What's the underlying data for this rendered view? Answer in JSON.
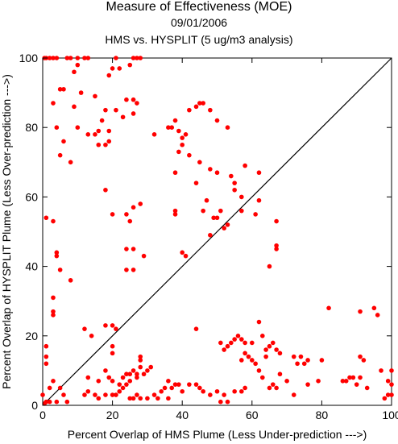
{
  "chart_data": {
    "type": "scatter",
    "title": "Measure of Effectiveness (MOE)",
    "subtitle_date": "09/01/2006",
    "subtitle_comparison": "HMS vs. HYSPLIT  (5 ug/m3 analysis)",
    "xlabel": "Percent Overlap of HMS Plume (Less Under-prediction --->)",
    "ylabel": "Percent Overlap of HYSPLIT Plume (Less Over-prediction --->)",
    "xlim": [
      0,
      100
    ],
    "ylim": [
      0,
      100
    ],
    "xticks": [
      0,
      20,
      40,
      60,
      80,
      100
    ],
    "yticks": [
      0,
      20,
      40,
      60,
      80,
      100
    ],
    "x_tick_labels": [
      "0",
      "20",
      "40",
      "60",
      "80",
      "100"
    ],
    "y_tick_labels": [
      "0",
      "20",
      "40",
      "60",
      "80",
      "100"
    ],
    "grid": false,
    "diagonal_reference_line": true,
    "marker_color": "#ff0000",
    "line_color": "#000000",
    "points": [
      [
        0.5,
        100
      ],
      [
        1,
        100
      ],
      [
        2,
        100
      ],
      [
        3,
        100
      ],
      [
        4,
        100
      ],
      [
        7,
        100
      ],
      [
        8,
        100
      ],
      [
        10,
        100
      ],
      [
        12,
        100
      ],
      [
        13,
        100
      ],
      [
        21,
        100
      ],
      [
        26,
        100
      ],
      [
        27,
        100
      ],
      [
        28,
        100
      ],
      [
        10,
        98
      ],
      [
        25,
        98
      ],
      [
        9,
        96
      ],
      [
        20,
        97
      ],
      [
        22,
        97
      ],
      [
        19,
        95
      ],
      [
        5,
        91
      ],
      [
        6,
        91
      ],
      [
        11,
        90
      ],
      [
        15,
        89
      ],
      [
        24,
        88
      ],
      [
        26,
        88
      ],
      [
        27,
        87
      ],
      [
        3,
        87
      ],
      [
        9,
        86
      ],
      [
        21,
        85
      ],
      [
        18,
        85
      ],
      [
        26,
        84
      ],
      [
        23,
        83
      ],
      [
        17,
        82
      ],
      [
        4,
        80
      ],
      [
        10,
        80
      ],
      [
        16,
        79
      ],
      [
        19,
        79
      ],
      [
        15,
        78
      ],
      [
        13,
        78
      ],
      [
        6,
        76
      ],
      [
        16,
        75
      ],
      [
        18,
        75
      ],
      [
        19,
        76
      ],
      [
        5,
        72
      ],
      [
        8,
        70
      ],
      [
        18,
        62
      ],
      [
        32,
        78
      ],
      [
        36,
        80
      ],
      [
        37,
        80
      ],
      [
        38,
        82
      ],
      [
        39,
        79
      ],
      [
        40,
        77
      ],
      [
        41,
        78
      ],
      [
        42,
        85
      ],
      [
        44,
        86
      ],
      [
        45,
        87
      ],
      [
        46,
        87
      ],
      [
        48,
        85
      ],
      [
        50,
        82
      ],
      [
        53,
        80
      ],
      [
        39,
        73
      ],
      [
        42,
        72
      ],
      [
        40,
        75
      ],
      [
        45,
        70
      ],
      [
        38,
        67
      ],
      [
        44,
        64
      ],
      [
        48,
        68
      ],
      [
        50,
        67
      ],
      [
        54,
        66
      ],
      [
        55,
        62
      ],
      [
        58,
        69
      ],
      [
        62,
        67
      ],
      [
        55,
        64
      ],
      [
        57,
        60
      ],
      [
        47,
        59
      ],
      [
        46,
        56
      ],
      [
        51,
        56
      ],
      [
        49,
        54
      ],
      [
        50,
        54
      ],
      [
        53,
        52
      ],
      [
        57,
        56
      ],
      [
        61,
        55
      ],
      [
        62,
        59
      ],
      [
        67,
        53
      ],
      [
        67,
        46
      ],
      [
        67,
        45
      ],
      [
        65,
        40
      ],
      [
        38,
        56
      ],
      [
        38,
        55
      ],
      [
        20,
        55
      ],
      [
        24,
        55
      ],
      [
        25,
        53
      ],
      [
        26,
        57
      ],
      [
        28,
        58
      ],
      [
        40,
        44
      ],
      [
        41,
        43
      ],
      [
        48,
        49
      ],
      [
        52,
        51
      ],
      [
        1,
        54
      ],
      [
        3,
        53
      ],
      [
        4,
        44
      ],
      [
        4,
        43
      ],
      [
        5,
        39
      ],
      [
        8,
        36
      ],
      [
        3,
        31
      ],
      [
        3,
        27
      ],
      [
        3,
        26
      ],
      [
        12,
        22
      ],
      [
        18,
        23
      ],
      [
        20,
        23
      ],
      [
        21,
        22
      ],
      [
        14,
        20
      ],
      [
        24,
        39
      ],
      [
        26,
        39
      ],
      [
        24,
        45
      ],
      [
        26,
        45
      ],
      [
        29,
        43
      ],
      [
        20,
        17
      ],
      [
        20,
        15
      ],
      [
        1,
        17
      ],
      [
        1,
        14
      ],
      [
        1,
        12
      ],
      [
        2,
        5
      ],
      [
        3,
        7
      ],
      [
        0,
        3
      ],
      [
        5,
        5
      ],
      [
        6,
        3
      ],
      [
        7,
        1
      ],
      [
        0.5,
        0.5
      ],
      [
        1,
        1
      ],
      [
        2,
        1
      ],
      [
        4,
        1
      ],
      [
        13,
        8
      ],
      [
        16,
        7
      ],
      [
        18,
        10
      ],
      [
        19,
        8
      ],
      [
        20,
        7
      ],
      [
        22,
        6
      ],
      [
        23,
        8
      ],
      [
        24,
        9
      ],
      [
        25,
        9
      ],
      [
        26,
        10
      ],
      [
        27,
        9
      ],
      [
        28,
        11
      ],
      [
        28,
        14
      ],
      [
        28,
        13
      ],
      [
        31,
        11
      ],
      [
        30,
        10
      ],
      [
        29,
        9
      ],
      [
        27,
        8
      ],
      [
        25,
        7
      ],
      [
        24,
        6
      ],
      [
        23,
        5
      ],
      [
        22,
        4
      ],
      [
        21,
        3
      ],
      [
        20,
        3
      ],
      [
        18,
        3
      ],
      [
        16,
        2
      ],
      [
        15,
        3
      ],
      [
        13,
        4
      ],
      [
        12,
        3
      ],
      [
        25,
        2
      ],
      [
        26,
        2
      ],
      [
        27,
        3
      ],
      [
        28,
        2
      ],
      [
        30,
        2
      ],
      [
        32,
        3
      ],
      [
        34,
        4
      ],
      [
        35,
        5
      ],
      [
        36,
        7
      ],
      [
        37,
        5
      ],
      [
        38,
        6
      ],
      [
        39,
        6
      ],
      [
        40,
        4
      ],
      [
        42,
        6
      ],
      [
        44,
        6
      ],
      [
        45,
        5
      ],
      [
        46,
        4
      ],
      [
        48,
        3
      ],
      [
        50,
        4
      ],
      [
        52,
        3
      ],
      [
        55,
        4
      ],
      [
        57,
        4
      ],
      [
        58,
        5
      ],
      [
        36,
        2
      ],
      [
        33,
        2
      ],
      [
        53,
        1
      ],
      [
        51,
        1
      ],
      [
        44,
        22
      ],
      [
        51,
        18
      ],
      [
        52,
        16
      ],
      [
        53,
        17
      ],
      [
        54,
        18
      ],
      [
        55,
        19
      ],
      [
        56,
        20
      ],
      [
        57,
        19
      ],
      [
        58,
        18
      ],
      [
        60,
        18
      ],
      [
        62,
        24
      ],
      [
        63,
        20
      ],
      [
        64,
        16
      ],
      [
        65,
        17
      ],
      [
        66,
        18
      ],
      [
        67,
        16
      ],
      [
        68,
        15
      ],
      [
        59,
        14
      ],
      [
        60,
        13
      ],
      [
        61,
        12
      ],
      [
        62,
        10
      ],
      [
        63,
        8
      ],
      [
        57,
        13
      ],
      [
        58,
        15
      ],
      [
        64,
        14
      ],
      [
        66,
        6
      ],
      [
        65,
        5
      ],
      [
        67,
        5
      ],
      [
        70,
        7
      ],
      [
        72,
        14
      ],
      [
        73,
        12
      ],
      [
        74,
        14
      ],
      [
        75,
        12
      ],
      [
        76,
        13
      ],
      [
        80,
        13
      ],
      [
        82,
        28
      ],
      [
        86,
        7
      ],
      [
        87,
        7
      ],
      [
        88,
        8
      ],
      [
        89,
        8
      ],
      [
        91,
        27
      ],
      [
        91,
        14
      ],
      [
        92,
        13
      ],
      [
        90,
        6
      ],
      [
        91,
        8
      ],
      [
        93,
        5
      ],
      [
        95,
        28
      ],
      [
        96,
        26
      ],
      [
        97,
        10
      ],
      [
        99,
        3
      ],
      [
        100,
        3
      ],
      [
        99,
        7
      ],
      [
        100,
        10
      ],
      [
        100,
        6
      ],
      [
        98,
        2
      ],
      [
        79,
        7
      ],
      [
        72,
        3
      ],
      [
        76,
        6
      ],
      [
        68,
        9
      ]
    ]
  }
}
